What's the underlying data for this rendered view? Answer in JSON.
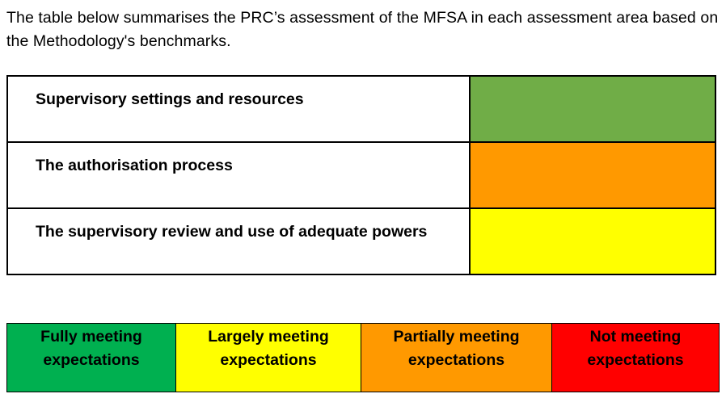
{
  "intro": "The table below summarises the PRC’s assessment of the MFSA in each assessment area based on the Methodology's benchmarks.",
  "assessment": [
    {
      "area": "Supervisory settings and resources",
      "rating": "Fully meeting expectations",
      "color": "#70ad47"
    },
    {
      "area": "The authorisation process",
      "rating": "Partially meeting expectations",
      "color": "#ff9900"
    },
    {
      "area": "The supervisory review and use of adequate powers",
      "rating": "Largely meeting expectations",
      "color": "#ffff00"
    }
  ],
  "legend": [
    {
      "label": "Fully meeting expectations",
      "color": "#00b050"
    },
    {
      "label": "Largely meeting expectations",
      "color": "#ffff00"
    },
    {
      "label": "Partially meeting expectations",
      "color": "#ff9900"
    },
    {
      "label": "Not meeting expectations",
      "color": "#ff0000"
    }
  ]
}
